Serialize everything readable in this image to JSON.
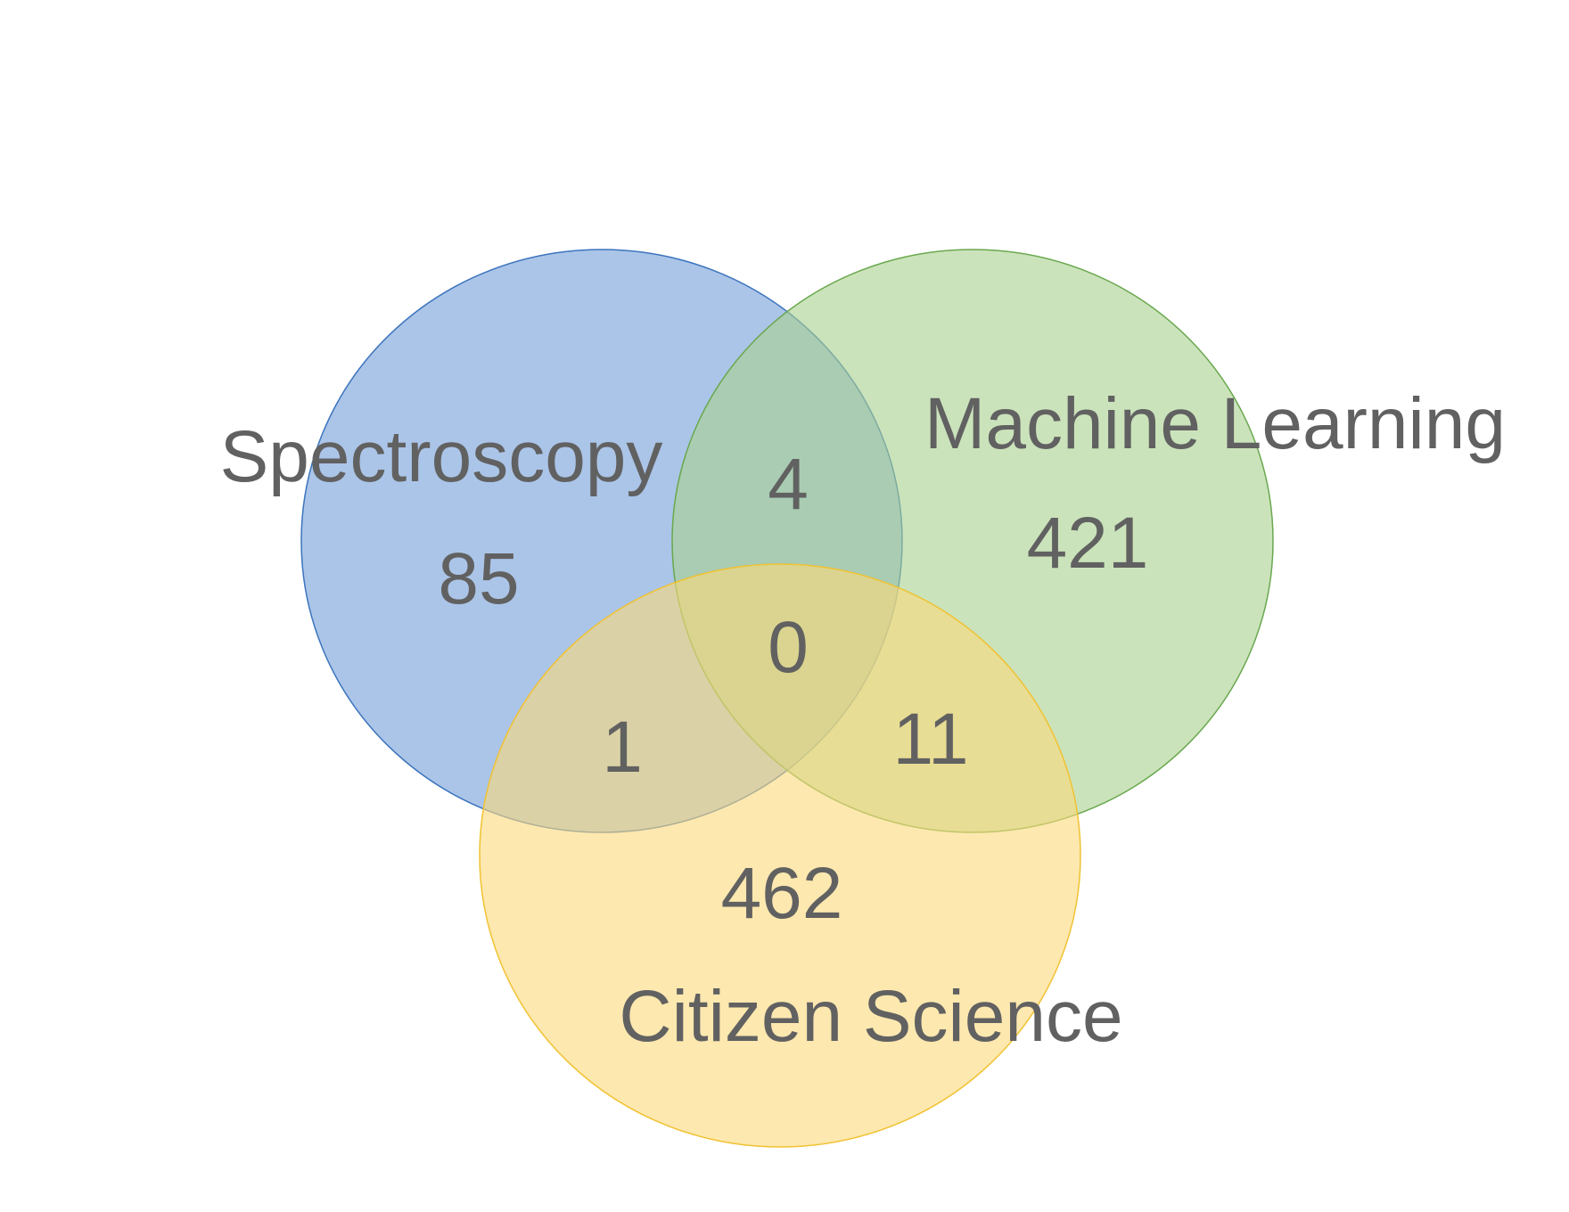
{
  "sets": [
    {
      "id": "spectroscopy",
      "label": "Spectroscopy",
      "fill": "#7ea6dc",
      "stroke": "#3c74bd"
    },
    {
      "id": "machine_learning",
      "label": "Machine Learning",
      "fill": "#a8d08d",
      "stroke": "#6aa84f"
    },
    {
      "id": "citizen_science",
      "label": "Citizen Science",
      "fill": "#fbd87a",
      "stroke": "#f1c232"
    }
  ],
  "regions": {
    "spectroscopy_only": "85",
    "machine_learning_only": "421",
    "citizen_science_only": "462",
    "spectroscopy_machine_learning": "4",
    "spectroscopy_citizen_science": "1",
    "machine_learning_citizen_science": "11",
    "all_three": "0"
  }
}
